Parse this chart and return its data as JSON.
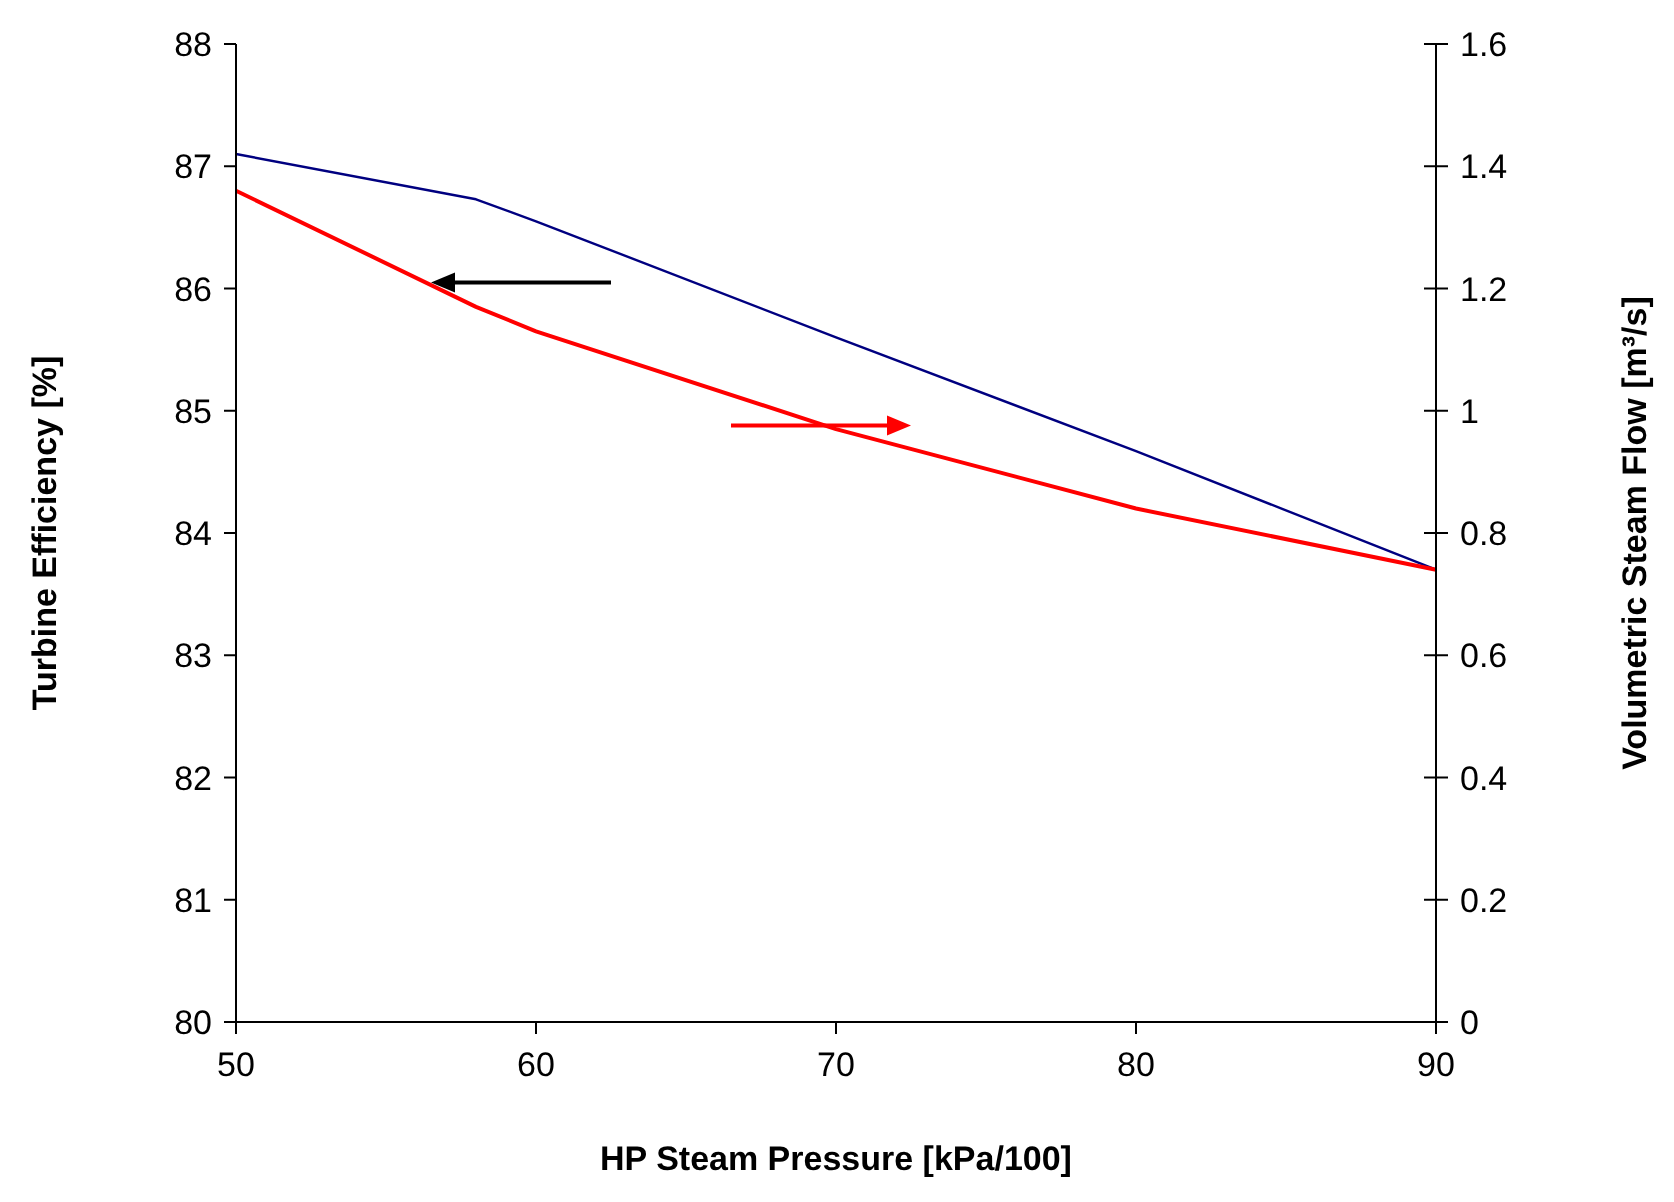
{
  "chart_data": {
    "type": "line",
    "xlabel": "HP Steam Pressure [kPa/100]",
    "ylabel": "Turbine Efficiency [%]",
    "y2label": "Volumetric Steam Flow [m³/s]",
    "series": [
      {
        "color": "#000080",
        "x": [
          50,
          58,
          60,
          70,
          80,
          90
        ],
        "values": [
          87.1,
          86.73,
          86.55,
          85.6,
          84.67,
          83.7
        ]
      },
      {
        "color": "#ff0000",
        "axis": "y2",
        "x": [
          50,
          58,
          60,
          70,
          80,
          90
        ],
        "values": [
          1.36,
          1.17,
          1.13,
          0.97,
          0.84,
          0.74
        ]
      }
    ],
    "xlim": [
      50,
      90
    ],
    "xticks": [
      50,
      60,
      70,
      80,
      90
    ],
    "ylim": [
      80,
      88
    ],
    "yticks": [
      80,
      81,
      82,
      83,
      84,
      85,
      86,
      87,
      88
    ],
    "y2lim": [
      0,
      1.6
    ],
    "y2ticks": [
      0,
      0.2,
      0.4,
      0.6,
      0.8,
      1,
      1.2,
      1.4,
      1.6
    ],
    "grid": false,
    "marker": "none",
    "line_style": "solid"
  }
}
